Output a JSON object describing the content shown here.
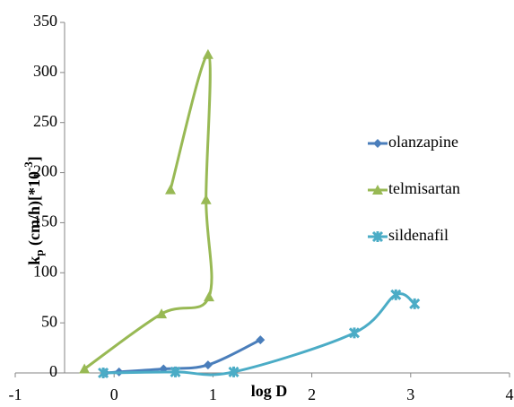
{
  "chart_data": {
    "type": "scatter_smooth",
    "x_label": "log D",
    "y_label": [
      "k",
      "p",
      " (cm/h)[*10",
      "-3",
      "]"
    ],
    "xlim": [
      -1,
      4
    ],
    "xticks": [
      -1,
      0,
      1,
      2,
      3,
      4
    ],
    "ylim": [
      0,
      350
    ],
    "yticks": [
      0,
      50,
      100,
      150,
      200,
      250,
      300,
      350
    ],
    "series": [
      {
        "name": "olanzapine",
        "color": "#4a7ebb",
        "marker": "diamond",
        "x": [
          -0.09,
          0.05,
          0.5,
          0.95,
          1.48
        ],
        "values": [
          0,
          1,
          4,
          8,
          33
        ]
      },
      {
        "name": "telmisartan",
        "color": "#98b954",
        "marker": "triangle",
        "x": [
          -0.3,
          0.48,
          0.96,
          0.93,
          0.95,
          0.57
        ],
        "values": [
          4,
          59,
          76,
          173,
          318,
          183
        ]
      },
      {
        "name": "sildenafil",
        "color": "#4bacc6",
        "marker": "star",
        "x": [
          -0.11,
          0.62,
          1.21,
          2.43,
          2.85,
          3.04
        ],
        "values": [
          0,
          1,
          1,
          40,
          78,
          69
        ]
      }
    ]
  }
}
